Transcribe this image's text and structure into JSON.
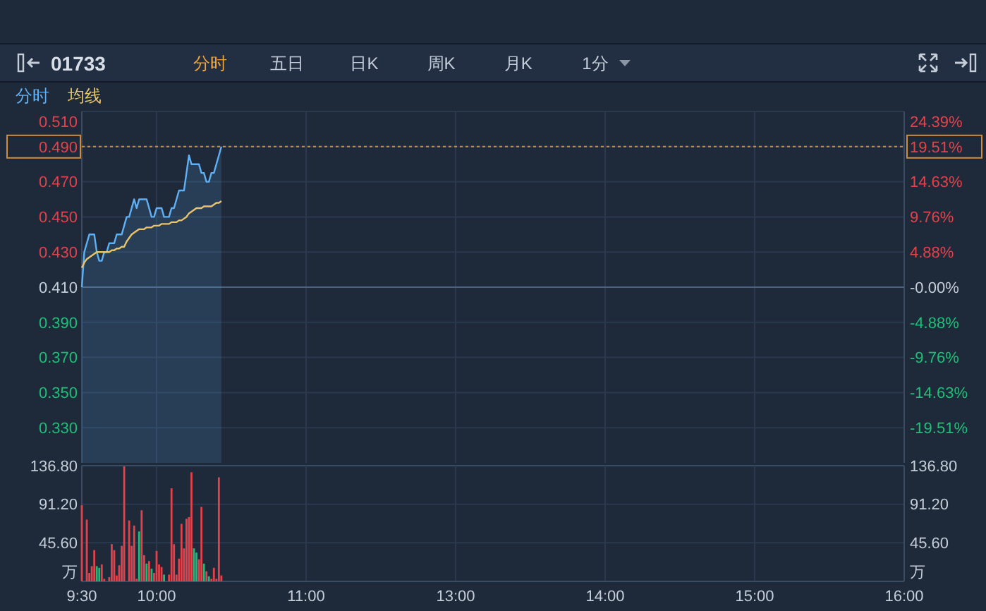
{
  "chart_data": [
    {
      "type": "other",
      "title": "01733",
      "annotations": [
        "分时",
        "五日",
        "日K",
        "周K",
        "月K",
        "1分"
      ]
    },
    {
      "type": "line",
      "legend": "top left",
      "grid": true,
      "categories": [
        null,
        null,
        null,
        null,
        null,
        null,
        null,
        null,
        null,
        null,
        null,
        null,
        null,
        null,
        null,
        null,
        null,
        null,
        null,
        null,
        null,
        null,
        null,
        null,
        null,
        null,
        null,
        null,
        null,
        null,
        null,
        null,
        null,
        null,
        null,
        null,
        null,
        null,
        null,
        null,
        null,
        null,
        null,
        null,
        null,
        null,
        null,
        null,
        null,
        null,
        null,
        null,
        null,
        null,
        null,
        null,
        null,
        null,
        null,
        null,
        null,
        null,
        null,
        null,
        null,
        null,
        null,
        null,
        null,
        null,
        null,
        null,
        null,
        null,
        null,
        null,
        null,
        null,
        null,
        null,
        null,
        null,
        null,
        null,
        null,
        null,
        null,
        null,
        null,
        null,
        null,
        null,
        null,
        null,
        null,
        null,
        null,
        null,
        null,
        null,
        null,
        null,
        null,
        null,
        null,
        null,
        null,
        null,
        null,
        null,
        null,
        null,
        null,
        null,
        null,
        null,
        null,
        null,
        null,
        null,
        null,
        null,
        null,
        null,
        null,
        null,
        null,
        null,
        null,
        null,
        null,
        null,
        null,
        null,
        null,
        null,
        null,
        null,
        null,
        null,
        null,
        null,
        null,
        null,
        null,
        null,
        null,
        null,
        null,
        null,
        null,
        null,
        null,
        null,
        null,
        null,
        null,
        null,
        null,
        null,
        null,
        null,
        null,
        null,
        null,
        null,
        null,
        null,
        null,
        null,
        null,
        null,
        null,
        null,
        null,
        null,
        null,
        null,
        null,
        null,
        null,
        null,
        null,
        null,
        null,
        null,
        null,
        null,
        null,
        null,
        null,
        null,
        null,
        null,
        null,
        null,
        null,
        null,
        null,
        null,
        null,
        null,
        null,
        null,
        null,
        null,
        null,
        null,
        null,
        null,
        null,
        null,
        null,
        null,
        null,
        null,
        null,
        null,
        null,
        null,
        null,
        null,
        null,
        null,
        null,
        null,
        null,
        null,
        null,
        null,
        null,
        null,
        null,
        null,
        null,
        null,
        null,
        null,
        null,
        null,
        null,
        null,
        null,
        null,
        null,
        null,
        null,
        null,
        null,
        null,
        null,
        null,
        null,
        null,
        null,
        null,
        null,
        null,
        null,
        null,
        null,
        null,
        null,
        null,
        null,
        null,
        null,
        null,
        null,
        null,
        null,
        null,
        null,
        null,
        null,
        null,
        null,
        null,
        null,
        null,
        null,
        null,
        null,
        null,
        null,
        null,
        null,
        null,
        null,
        null,
        null,
        null,
        null,
        null,
        null,
        null,
        null,
        null,
        null,
        null,
        null,
        null,
        null,
        null,
        null,
        null,
        null,
        null,
        null,
        null,
        null,
        null,
        null,
        null,
        null,
        null,
        null,
        null,
        null,
        null,
        null,
        null,
        null,
        null,
        null,
        null,
        null,
        null,
        null,
        null,
        null
      ],
      "ylim": [
        0.31,
        0.51
      ],
      "yticks": [
        {
          "value": 0.51,
          "label": "0.510"
        },
        {
          "value": 0.49,
          "label": "0.490"
        },
        {
          "value": 0.47,
          "label": "0.470"
        },
        {
          "value": 0.45,
          "label": "0.450"
        },
        {
          "value": 0.43,
          "label": "0.430"
        },
        {
          "value": 0.41,
          "label": "0.410"
        },
        {
          "value": 0.39,
          "label": "0.390"
        },
        {
          "value": 0.37,
          "label": "0.370"
        },
        {
          "value": 0.35,
          "label": "0.350"
        },
        {
          "value": 0.33,
          "label": "0.330"
        }
      ],
      "y2lim": [
        -24.39,
        24.39
      ],
      "y2ticks": [
        {
          "value": 24.39,
          "label": "24.39%"
        },
        {
          "value": 19.51,
          "label": "19.51%"
        },
        {
          "value": 14.63,
          "label": "14.63%"
        },
        {
          "value": 9.76,
          "label": "9.76%"
        },
        {
          "value": 4.88,
          "label": "4.88%"
        },
        {
          "value": 0,
          "label": "-0.00%"
        },
        {
          "value": -4.88,
          "label": "-4.88%"
        },
        {
          "value": -9.76,
          "label": "-9.76%"
        },
        {
          "value": -14.63,
          "label": "-14.63%"
        },
        {
          "value": -19.51,
          "label": "-19.51%"
        }
      ],
      "ref_lines": [
        {
          "axis": "y",
          "value": 0.41,
          "color": "#4a6282"
        },
        {
          "axis": "y",
          "value": 0.49,
          "color": "#d08b3b",
          "line_style": "dotted"
        }
      ],
      "series": [
        {
          "name": "分时",
          "type": "area",
          "color": "#5fb0f5",
          "values": [
            0.41,
            0.43,
            0.435,
            0.44,
            0.44,
            0.44,
            0.43,
            0.425,
            0.425,
            0.43,
            0.43,
            0.435,
            0.435,
            0.435,
            0.44,
            0.44,
            0.44,
            0.445,
            0.45,
            0.45,
            0.455,
            0.46,
            0.455,
            0.46,
            0.46,
            0.46,
            0.46,
            0.455,
            0.45,
            0.45,
            0.455,
            0.455,
            0.455,
            0.45,
            0.45,
            0.45,
            0.455,
            0.455,
            0.46,
            0.465,
            0.465,
            0.465,
            0.475,
            0.485,
            0.48,
            0.48,
            0.48,
            0.48,
            0.475,
            0.475,
            0.47,
            0.47,
            0.475,
            0.475,
            0.48,
            0.485,
            0.49,
            null,
            null,
            null,
            null,
            null,
            null,
            null,
            null,
            null,
            null,
            null,
            null,
            null,
            null,
            null,
            null,
            null,
            null,
            null,
            null,
            null,
            null,
            null,
            null,
            null,
            null,
            null,
            null,
            null,
            null,
            null,
            null,
            null,
            null,
            null,
            null,
            null,
            null,
            null,
            null,
            null,
            null,
            null,
            null,
            null,
            null,
            null,
            null,
            null,
            null,
            null,
            null,
            null,
            null,
            null,
            null,
            null,
            null,
            null,
            null,
            null,
            null,
            null,
            null,
            null,
            null,
            null,
            null,
            null,
            null,
            null,
            null,
            null,
            null,
            null,
            null,
            null,
            null,
            null,
            null,
            null,
            null,
            null,
            null,
            null,
            null,
            null,
            null,
            null,
            null,
            null,
            null,
            null,
            null,
            null,
            null,
            null,
            null,
            null,
            null,
            null,
            null,
            null,
            null,
            null,
            null,
            null,
            null,
            null,
            null,
            null,
            null,
            null,
            null,
            null,
            null,
            null,
            null,
            null,
            null,
            null,
            null,
            null,
            null,
            null,
            null,
            null,
            null,
            null,
            null,
            null,
            null,
            null,
            null,
            null,
            null,
            null,
            null,
            null,
            null,
            null,
            null,
            null,
            null,
            null,
            null,
            null,
            null,
            null,
            null,
            null,
            null,
            null,
            null,
            null,
            null,
            null,
            null,
            null,
            null,
            null,
            null,
            null,
            null,
            null,
            null,
            null,
            null,
            null,
            null,
            null,
            null,
            null,
            null,
            null,
            null,
            null,
            null,
            null,
            null,
            null,
            null,
            null,
            null,
            null,
            null,
            null,
            null,
            null,
            null,
            null,
            null,
            null,
            null,
            null,
            null,
            null,
            null,
            null,
            null,
            null,
            null,
            null,
            null,
            null,
            null,
            null,
            null,
            null,
            null,
            null,
            null,
            null,
            null,
            null,
            null,
            null,
            null,
            null,
            null,
            null,
            null,
            null,
            null,
            null,
            null,
            null,
            null,
            null,
            null,
            null,
            null,
            null,
            null,
            null,
            null,
            null,
            null,
            null,
            null,
            null,
            null,
            null,
            null,
            null,
            null,
            null,
            null,
            null,
            null,
            null,
            null,
            null,
            null,
            null,
            null,
            null,
            null,
            null,
            null,
            null,
            null,
            null,
            null,
            null,
            null,
            null,
            null,
            null,
            null,
            null,
            null,
            null,
            null
          ]
        },
        {
          "name": "均线",
          "type": "line",
          "color": "#e9c46a",
          "values": [
            0.421,
            0.424,
            0.426,
            0.427,
            0.428,
            0.429,
            0.43,
            0.43,
            0.43,
            0.43,
            0.43,
            0.43,
            0.431,
            0.431,
            0.432,
            0.432,
            0.433,
            0.433,
            0.436,
            0.438,
            0.44,
            0.441,
            0.442,
            0.443,
            0.443,
            0.443,
            0.444,
            0.444,
            0.444,
            0.445,
            0.445,
            0.445,
            0.446,
            0.446,
            0.446,
            0.446,
            0.447,
            0.447,
            0.447,
            0.448,
            0.448,
            0.449,
            0.45,
            0.452,
            0.453,
            0.454,
            0.455,
            0.455,
            0.455,
            0.456,
            0.456,
            0.456,
            0.456,
            0.457,
            0.458,
            0.458,
            0.459,
            null,
            null,
            null,
            null,
            null,
            null,
            null,
            null,
            null,
            null,
            null,
            null,
            null,
            null,
            null,
            null,
            null,
            null,
            null,
            null,
            null,
            null,
            null,
            null,
            null,
            null,
            null,
            null,
            null,
            null,
            null,
            null,
            null,
            null,
            null,
            null,
            null,
            null,
            null,
            null,
            null,
            null,
            null,
            null,
            null,
            null,
            null,
            null,
            null,
            null,
            null,
            null,
            null,
            null,
            null,
            null,
            null,
            null,
            null,
            null,
            null,
            null,
            null,
            null,
            null,
            null,
            null,
            null,
            null,
            null,
            null,
            null,
            null,
            null,
            null,
            null,
            null,
            null,
            null,
            null,
            null,
            null,
            null,
            null,
            null,
            null,
            null,
            null,
            null,
            null,
            null,
            null,
            null,
            null,
            null,
            null,
            null,
            null,
            null,
            null,
            null,
            null,
            null,
            null,
            null,
            null,
            null,
            null,
            null,
            null,
            null,
            null,
            null,
            null,
            null,
            null,
            null,
            null,
            null,
            null,
            null,
            null,
            null,
            null,
            null,
            null,
            null,
            null,
            null,
            null,
            null,
            null,
            null,
            null,
            null,
            null,
            null,
            null,
            null,
            null,
            null,
            null,
            null,
            null,
            null,
            null,
            null,
            null,
            null,
            null,
            null,
            null,
            null,
            null,
            null,
            null,
            null,
            null,
            null,
            null,
            null,
            null,
            null,
            null,
            null,
            null,
            null,
            null,
            null,
            null,
            null,
            null,
            null,
            null,
            null,
            null,
            null,
            null,
            null,
            null,
            null,
            null,
            null,
            null,
            null,
            null,
            null,
            null,
            null,
            null,
            null,
            null,
            null,
            null,
            null,
            null,
            null,
            null,
            null,
            null,
            null,
            null,
            null,
            null,
            null,
            null,
            null,
            null,
            null,
            null,
            null,
            null,
            null,
            null,
            null,
            null,
            null,
            null,
            null,
            null,
            null,
            null,
            null,
            null,
            null,
            null,
            null,
            null,
            null,
            null,
            null,
            null,
            null,
            null,
            null,
            null,
            null,
            null,
            null,
            null,
            null,
            null,
            null,
            null,
            null,
            null,
            null,
            null,
            null,
            null,
            null,
            null,
            null,
            null,
            null,
            null,
            null,
            null,
            null,
            null,
            null,
            null,
            null,
            null,
            null,
            null,
            null,
            null,
            null,
            null,
            null,
            null,
            null,
            null
          ]
        }
      ]
    },
    {
      "type": "bar",
      "grid": true,
      "categories": [
        "9:30",
        null,
        null,
        null,
        null,
        null,
        null,
        null,
        null,
        null,
        null,
        null,
        null,
        null,
        null,
        null,
        null,
        null,
        null,
        null,
        null,
        null,
        null,
        null,
        null,
        null,
        null,
        null,
        null,
        null,
        "10:00",
        null,
        null,
        null,
        null,
        null,
        null,
        null,
        null,
        null,
        null,
        null,
        null,
        null,
        null,
        null,
        null,
        null,
        null,
        null,
        null,
        null,
        null,
        null,
        null,
        null,
        null,
        null,
        null,
        null,
        null,
        null,
        null,
        null,
        null,
        null,
        null,
        null,
        null,
        null,
        null,
        null,
        null,
        null,
        null,
        null,
        null,
        null,
        null,
        null,
        null,
        null,
        null,
        null,
        null,
        null,
        null,
        null,
        null,
        null,
        "11:00",
        null,
        null,
        null,
        null,
        null,
        null,
        null,
        null,
        null,
        null,
        null,
        null,
        null,
        null,
        null,
        null,
        null,
        null,
        null,
        null,
        null,
        null,
        null,
        null,
        null,
        null,
        null,
        null,
        null,
        null,
        null,
        null,
        null,
        null,
        null,
        null,
        null,
        null,
        null,
        null,
        null,
        null,
        null,
        null,
        null,
        null,
        null,
        null,
        null,
        null,
        null,
        null,
        null,
        null,
        null,
        null,
        null,
        null,
        null,
        "13:00",
        null,
        null,
        null,
        null,
        null,
        null,
        null,
        null,
        null,
        null,
        null,
        null,
        null,
        null,
        null,
        null,
        null,
        null,
        null,
        null,
        null,
        null,
        null,
        null,
        null,
        null,
        null,
        null,
        null,
        null,
        null,
        null,
        null,
        null,
        null,
        null,
        null,
        null,
        null,
        null,
        null,
        null,
        null,
        null,
        null,
        null,
        null,
        null,
        null,
        null,
        null,
        null,
        null,
        null,
        null,
        null,
        null,
        null,
        null,
        "14:00",
        null,
        null,
        null,
        null,
        null,
        null,
        null,
        null,
        null,
        null,
        null,
        null,
        null,
        null,
        null,
        null,
        null,
        null,
        null,
        null,
        null,
        null,
        null,
        null,
        null,
        null,
        null,
        null,
        null,
        null,
        null,
        null,
        null,
        null,
        null,
        null,
        null,
        null,
        null,
        null,
        null,
        null,
        null,
        null,
        null,
        null,
        null,
        null,
        null,
        null,
        null,
        null,
        null,
        null,
        null,
        null,
        null,
        null,
        null,
        "15:00",
        null,
        null,
        null,
        null,
        null,
        null,
        null,
        null,
        null,
        null,
        null,
        null,
        null,
        null,
        null,
        null,
        null,
        null,
        null,
        null,
        null,
        null,
        null,
        null,
        null,
        null,
        null,
        null,
        null,
        null,
        null,
        null,
        null,
        null,
        null,
        null,
        null,
        null,
        null,
        null,
        null,
        null,
        null,
        null,
        null,
        null,
        null,
        null,
        null,
        null,
        null,
        null,
        null,
        null,
        null,
        null,
        null,
        null,
        null,
        "16:00"
      ],
      "ylim": [
        0,
        136.8
      ],
      "yticks": [
        {
          "value": 136.8,
          "label": "136.80"
        },
        {
          "value": 91.2,
          "label": "91.20"
        },
        {
          "value": 45.6,
          "label": "45.60"
        }
      ],
      "y2lim": [
        0,
        136.8
      ],
      "y2ticks": [
        {
          "value": 136.8,
          "label": "136.80"
        },
        {
          "value": 91.2,
          "label": "91.20"
        },
        {
          "value": 45.6,
          "label": "45.60"
        }
      ],
      "ylabel": "万",
      "y2label": "万",
      "values": [
        90,
        null,
        73,
        10,
        18,
        37,
        18,
        16,
        20,
        3,
        null,
        5,
        44,
        37,
        7,
        19,
        42,
        136,
        null,
        72,
        42,
        66,
        3,
        59,
        84,
        31,
        21,
        24,
        15,
        10,
        36,
        20,
        17,
        8,
        null,
        8,
        110,
        44,
        8,
        27,
        68,
        39,
        74,
        76,
        129,
        39,
        34,
        26,
        88,
        21,
        12,
        6,
        3,
        16,
        3,
        123,
        7,
        null,
        null,
        null,
        null,
        null,
        null,
        null,
        null,
        null,
        null,
        null,
        null,
        null,
        null,
        null,
        null,
        null,
        null,
        null,
        null,
        null,
        null,
        null,
        null,
        null,
        null,
        null,
        null,
        null,
        null,
        null,
        null,
        null,
        null,
        null,
        null,
        null,
        null,
        null,
        null,
        null,
        null,
        null,
        null,
        null,
        null,
        null,
        null,
        null,
        null,
        null,
        null,
        null,
        null,
        null,
        null,
        null,
        null,
        null,
        null,
        null,
        null,
        null,
        null,
        null,
        null,
        null,
        null,
        null,
        null,
        null,
        null,
        null,
        null,
        null,
        null,
        null,
        null,
        null,
        null,
        null,
        null,
        null,
        null,
        null,
        null,
        null,
        null,
        null,
        null,
        null,
        null,
        null,
        null,
        null,
        null,
        null,
        null,
        null,
        null,
        null,
        null,
        null,
        null,
        null,
        null,
        null,
        null,
        null,
        null,
        null,
        null,
        null,
        null,
        null,
        null,
        null,
        null,
        null,
        null,
        null,
        null,
        null,
        null,
        null,
        null,
        null,
        null,
        null,
        null,
        null,
        null,
        null,
        null,
        null,
        null,
        null,
        null,
        null,
        null,
        null,
        null,
        null,
        null,
        null,
        null,
        null,
        null,
        null,
        null,
        null,
        null,
        null,
        null,
        null,
        null,
        null,
        null,
        null,
        null,
        null,
        null,
        null,
        null,
        null,
        null,
        null,
        null,
        null,
        null,
        null,
        null,
        null,
        null,
        null,
        null,
        null,
        null,
        null,
        null,
        null,
        null,
        null,
        null,
        null,
        null,
        null,
        null,
        null,
        null,
        null,
        null,
        null,
        null,
        null,
        null,
        null,
        null,
        null,
        null,
        null,
        null,
        null,
        null,
        null,
        null,
        null,
        null,
        null,
        null,
        null,
        null,
        null,
        null,
        null,
        null,
        null,
        null,
        null,
        null,
        null,
        null,
        null,
        null,
        null,
        null,
        null,
        null,
        null,
        null,
        null,
        null,
        null,
        null,
        null,
        null,
        null,
        null,
        null,
        null,
        null,
        null,
        null,
        null,
        null,
        null,
        null,
        null,
        null,
        null,
        null,
        null,
        null,
        null,
        null,
        null,
        null,
        null,
        null,
        null,
        null,
        null,
        null,
        null,
        null,
        null,
        null,
        null,
        null,
        null,
        null,
        null,
        null,
        null
      ],
      "colors": [
        "#e0434b",
        null,
        "#e0434b",
        "#e0434b",
        "#e0434b",
        "#e0434b",
        "#22b87a",
        "#22b87a",
        "#e0434b",
        "#e0434b",
        null,
        "#e0434b",
        "#e0434b",
        "#e0434b",
        "#e0434b",
        "#e0434b",
        "#e0434b",
        "#e0434b",
        null,
        "#e0434b",
        "#e0434b",
        "#e0434b",
        "#e0434b",
        "#22b87a",
        "#e0434b",
        "#e0434b",
        "#22b87a",
        "#e0434b",
        "#22b87a",
        "#e0434b",
        "#e0434b",
        "#e0434b",
        "#e0434b",
        "#22b87a",
        null,
        "#e0434b",
        "#e0434b",
        "#e0434b",
        "#e0434b",
        "#e0434b",
        "#e0434b",
        "#e0434b",
        "#e0434b",
        "#e0434b",
        "#e0434b",
        "#22b87a",
        "#22b87a",
        "#e0434b",
        "#e0434b",
        "#22b87a",
        "#e0434b",
        "#22b87a",
        "#e0434b",
        "#e0434b",
        "#e0434b",
        "#e0434b",
        "#e0434b",
        null,
        null,
        null,
        null,
        null,
        null,
        null,
        null,
        null,
        null,
        null,
        null,
        null,
        null,
        null,
        null,
        null,
        null,
        null,
        null,
        null,
        null,
        null,
        null,
        null,
        null,
        null,
        null,
        null,
        null,
        null,
        null,
        null,
        null,
        null,
        null,
        null,
        null,
        null,
        null,
        null,
        null,
        null,
        null,
        null,
        null,
        null,
        null,
        null,
        null,
        null,
        null,
        null,
        null,
        null,
        null,
        null,
        null,
        null,
        null,
        null,
        null,
        null,
        null,
        null,
        null,
        null,
        null,
        null,
        null,
        null,
        null,
        null,
        null,
        null,
        null,
        null,
        null,
        null,
        null,
        null,
        null,
        null,
        null,
        null,
        null,
        null,
        null,
        null,
        null,
        null,
        null,
        null,
        null,
        null,
        null,
        null,
        null,
        null,
        null,
        null,
        null,
        null,
        null,
        null,
        null,
        null,
        null,
        null,
        null,
        null,
        null,
        null,
        null,
        null,
        null,
        null,
        null,
        null,
        null,
        null,
        null,
        null,
        null,
        null,
        null,
        null,
        null,
        null,
        null,
        null,
        null,
        null,
        null,
        null,
        null,
        null,
        null,
        null,
        null,
        null,
        null,
        null,
        null,
        null,
        null,
        null,
        null,
        null,
        null,
        null,
        null,
        null,
        null,
        null,
        null,
        null,
        null,
        null,
        null,
        null,
        null,
        null,
        null,
        null,
        null,
        null,
        null,
        null,
        null,
        null,
        null,
        null,
        null,
        null,
        null,
        null,
        null,
        null,
        null,
        null,
        null,
        null,
        null,
        null,
        null,
        null,
        null,
        null,
        null,
        null,
        null,
        null,
        null,
        null,
        null,
        null,
        null,
        null,
        null,
        null,
        null,
        null,
        null,
        null,
        null,
        null,
        null,
        null,
        null,
        null,
        null,
        null,
        null,
        null,
        null,
        null,
        null,
        null,
        null,
        null,
        null,
        null,
        null,
        null,
        null,
        null,
        null,
        null,
        null,
        null,
        null,
        null,
        null,
        null,
        null,
        null,
        null,
        null,
        null,
        null,
        null,
        null,
        null,
        null,
        null,
        null,
        null,
        null,
        null,
        null,
        null,
        null,
        null,
        null,
        null,
        null,
        null,
        null,
        null,
        null,
        null,
        null,
        null,
        null,
        null,
        null,
        null,
        null,
        null,
        null,
        null,
        null,
        null
      ]
    }
  ]
}
